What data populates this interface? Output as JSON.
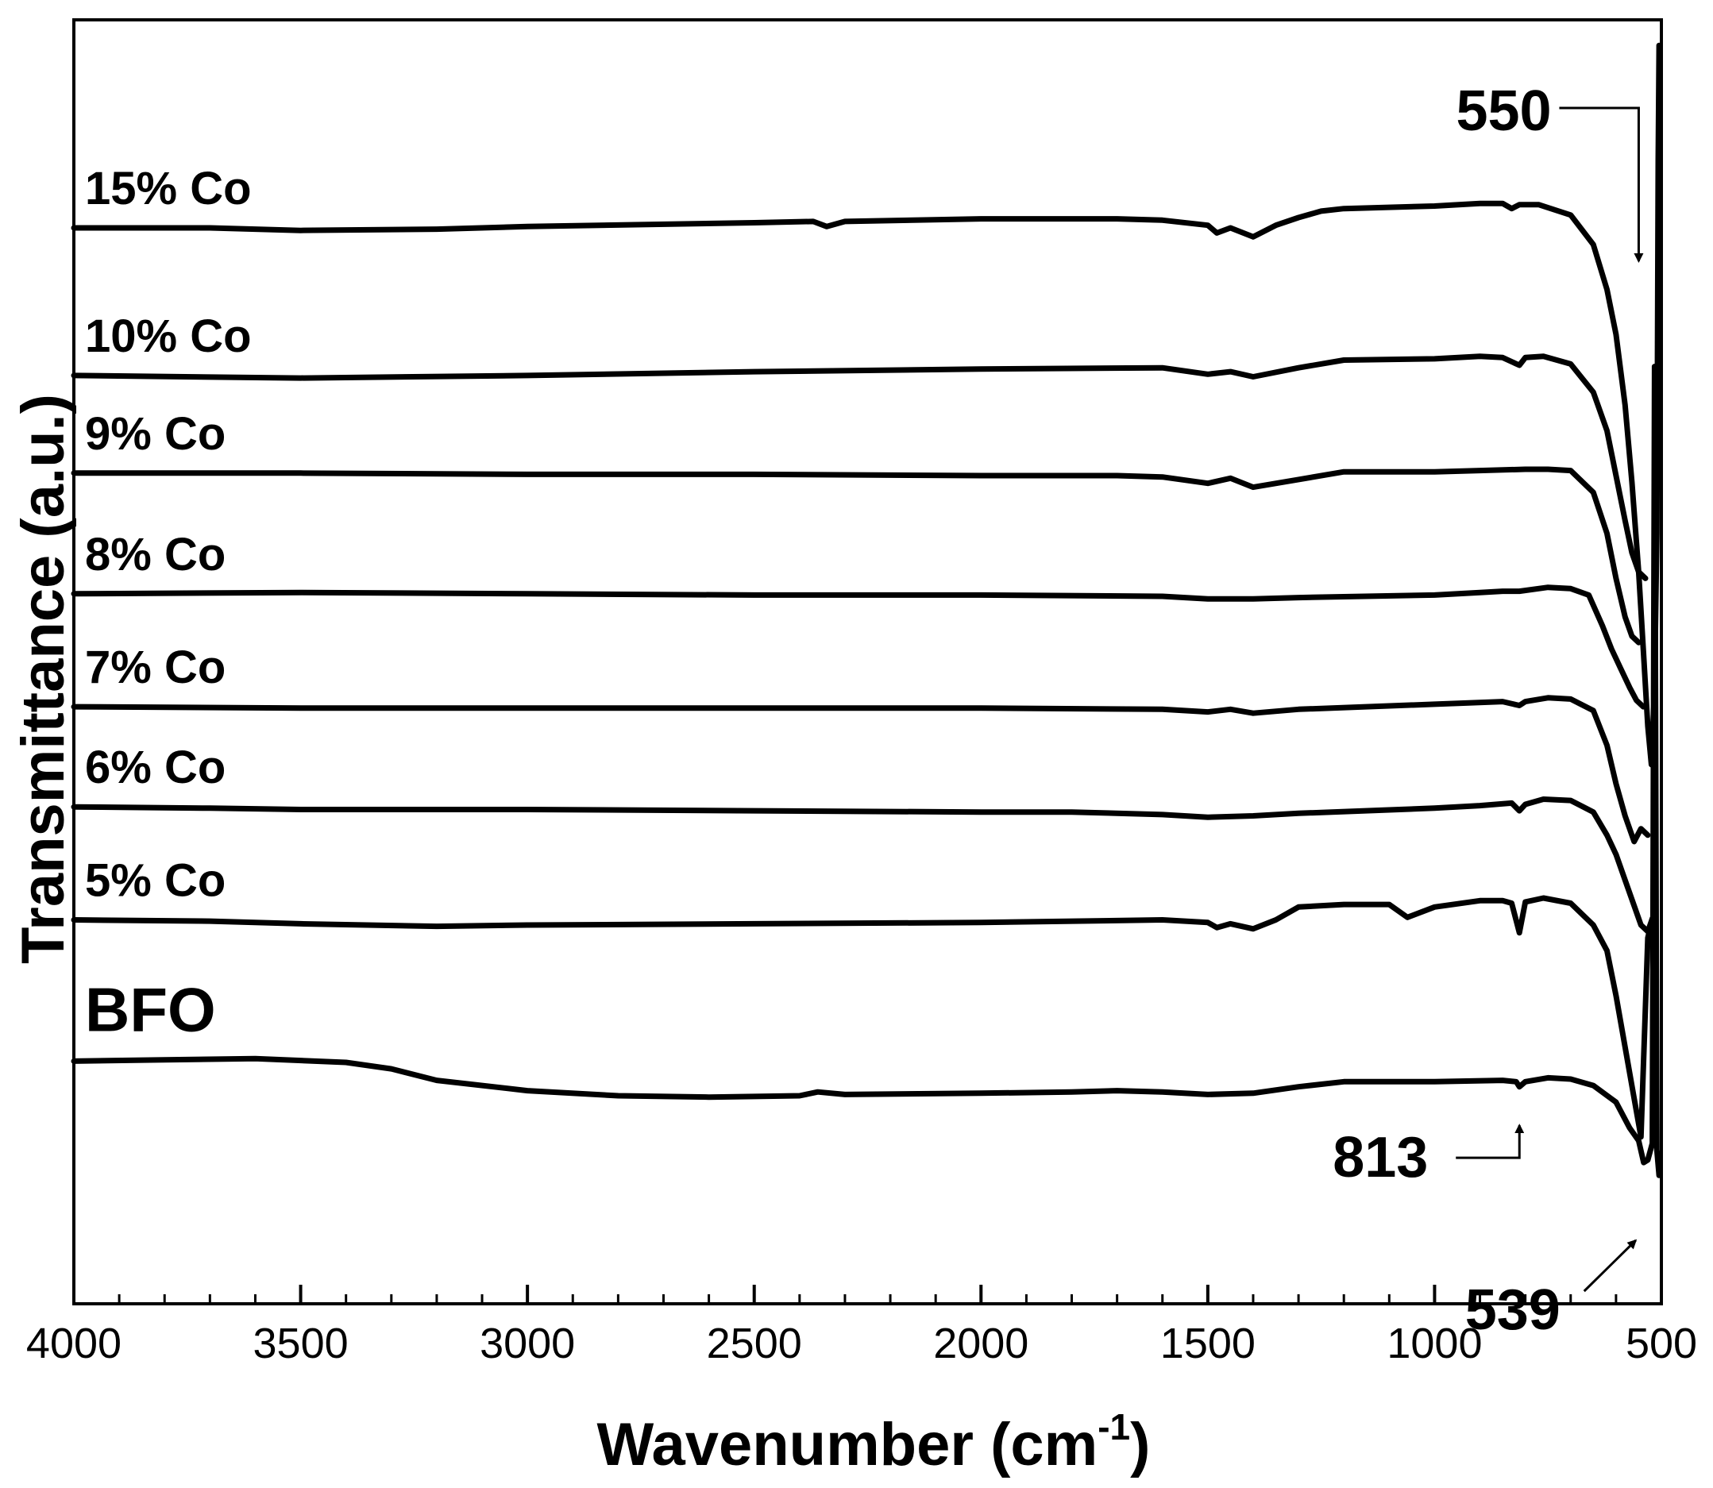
{
  "chart_data": {
    "type": "line",
    "title": "",
    "xlabel": "Wavenumber (cm",
    "xlabel_sup": "-1",
    "xlabel_close": ")",
    "ylabel": "Transmittance (a.u.)",
    "xlim": [
      4000,
      500
    ],
    "ylim": [
      0,
      100
    ],
    "x_ticks": [
      4000,
      3500,
      3000,
      2500,
      2000,
      1500,
      1000,
      500
    ],
    "x_tick_labels": [
      "4000",
      "3500",
      "3000",
      "2500",
      "2000",
      "1500",
      "1000",
      "500"
    ],
    "series": [
      {
        "name": "BFO",
        "points": [
          [
            4000,
            18.9
          ],
          [
            3800,
            19.0
          ],
          [
            3600,
            19.1
          ],
          [
            3400,
            18.8
          ],
          [
            3300,
            18.3
          ],
          [
            3200,
            17.4
          ],
          [
            3000,
            16.6
          ],
          [
            2800,
            16.2
          ],
          [
            2600,
            16.1
          ],
          [
            2400,
            16.2
          ],
          [
            2360,
            16.5
          ],
          [
            2300,
            16.3
          ],
          [
            2000,
            16.4
          ],
          [
            1800,
            16.5
          ],
          [
            1700,
            16.6
          ],
          [
            1600,
            16.5
          ],
          [
            1500,
            16.3
          ],
          [
            1400,
            16.4
          ],
          [
            1300,
            16.9
          ],
          [
            1200,
            17.3
          ],
          [
            1000,
            17.3
          ],
          [
            850,
            17.4
          ],
          [
            820,
            17.3
          ],
          [
            813,
            16.9
          ],
          [
            800,
            17.3
          ],
          [
            750,
            17.6
          ],
          [
            700,
            17.5
          ],
          [
            650,
            17.0
          ],
          [
            600,
            15.7
          ],
          [
            570,
            13.7
          ],
          [
            550,
            12.7
          ],
          [
            539,
            11.0
          ],
          [
            530,
            11.2
          ],
          [
            520,
            12.5
          ],
          [
            515,
            73
          ],
          [
            510,
            12
          ],
          [
            505,
            10
          ]
        ]
      },
      {
        "name": "5% Co",
        "points": [
          [
            4000,
            29.9
          ],
          [
            3700,
            29.8
          ],
          [
            3500,
            29.6
          ],
          [
            3200,
            29.4
          ],
          [
            3000,
            29.5
          ],
          [
            2500,
            29.6
          ],
          [
            2000,
            29.7
          ],
          [
            1600,
            29.9
          ],
          [
            1500,
            29.7
          ],
          [
            1480,
            29.3
          ],
          [
            1450,
            29.6
          ],
          [
            1400,
            29.2
          ],
          [
            1350,
            29.9
          ],
          [
            1300,
            30.9
          ],
          [
            1200,
            31.1
          ],
          [
            1100,
            31.1
          ],
          [
            1060,
            30.1
          ],
          [
            1000,
            30.9
          ],
          [
            900,
            31.4
          ],
          [
            850,
            31.4
          ],
          [
            830,
            31.2
          ],
          [
            813,
            28.9
          ],
          [
            800,
            31.3
          ],
          [
            760,
            31.6
          ],
          [
            700,
            31.2
          ],
          [
            650,
            29.5
          ],
          [
            620,
            27.5
          ],
          [
            600,
            24.0
          ],
          [
            580,
            20.0
          ],
          [
            560,
            16.0
          ],
          [
            545,
            13.0
          ],
          [
            530,
            28.5
          ],
          [
            520,
            30.0
          ]
        ]
      },
      {
        "name": "6% Co",
        "points": [
          [
            4000,
            38.7
          ],
          [
            3700,
            38.6
          ],
          [
            3500,
            38.5
          ],
          [
            3000,
            38.5
          ],
          [
            2500,
            38.4
          ],
          [
            2000,
            38.3
          ],
          [
            1800,
            38.3
          ],
          [
            1600,
            38.1
          ],
          [
            1500,
            37.9
          ],
          [
            1400,
            38.0
          ],
          [
            1300,
            38.2
          ],
          [
            1000,
            38.6
          ],
          [
            900,
            38.8
          ],
          [
            830,
            39.0
          ],
          [
            813,
            38.4
          ],
          [
            800,
            38.9
          ],
          [
            760,
            39.3
          ],
          [
            700,
            39.2
          ],
          [
            650,
            38.3
          ],
          [
            620,
            36.5
          ],
          [
            600,
            35.0
          ],
          [
            580,
            33.0
          ],
          [
            560,
            31.0
          ],
          [
            545,
            29.5
          ],
          [
            530,
            29.0
          ],
          [
            520,
            30.0
          ]
        ]
      },
      {
        "name": "7% Co",
        "points": [
          [
            4000,
            46.5
          ],
          [
            3500,
            46.4
          ],
          [
            3000,
            46.4
          ],
          [
            2500,
            46.4
          ],
          [
            2000,
            46.4
          ],
          [
            1600,
            46.3
          ],
          [
            1500,
            46.1
          ],
          [
            1450,
            46.3
          ],
          [
            1400,
            46.0
          ],
          [
            1300,
            46.3
          ],
          [
            1000,
            46.7
          ],
          [
            850,
            46.9
          ],
          [
            813,
            46.6
          ],
          [
            800,
            46.9
          ],
          [
            750,
            47.2
          ],
          [
            700,
            47.1
          ],
          [
            650,
            46.2
          ],
          [
            620,
            43.5
          ],
          [
            600,
            40.5
          ],
          [
            580,
            38.0
          ],
          [
            560,
            36.0
          ],
          [
            545,
            37.0
          ],
          [
            530,
            36.5
          ]
        ]
      },
      {
        "name": "8% Co",
        "points": [
          [
            4000,
            55.3
          ],
          [
            3500,
            55.4
          ],
          [
            3000,
            55.3
          ],
          [
            2500,
            55.2
          ],
          [
            2000,
            55.2
          ],
          [
            1600,
            55.1
          ],
          [
            1500,
            54.9
          ],
          [
            1400,
            54.9
          ],
          [
            1300,
            55.0
          ],
          [
            1000,
            55.2
          ],
          [
            900,
            55.4
          ],
          [
            850,
            55.5
          ],
          [
            813,
            55.5
          ],
          [
            750,
            55.8
          ],
          [
            700,
            55.7
          ],
          [
            660,
            55.2
          ],
          [
            630,
            52.8
          ],
          [
            610,
            51.0
          ],
          [
            590,
            49.5
          ],
          [
            570,
            48.0
          ],
          [
            555,
            47.0
          ],
          [
            540,
            46.5
          ]
        ]
      },
      {
        "name": "9% Co",
        "points": [
          [
            4000,
            64.7
          ],
          [
            3500,
            64.7
          ],
          [
            3000,
            64.6
          ],
          [
            2500,
            64.6
          ],
          [
            2000,
            64.5
          ],
          [
            1700,
            64.5
          ],
          [
            1600,
            64.4
          ],
          [
            1500,
            63.9
          ],
          [
            1450,
            64.3
          ],
          [
            1400,
            63.6
          ],
          [
            1300,
            64.2
          ],
          [
            1200,
            64.8
          ],
          [
            1000,
            64.8
          ],
          [
            900,
            64.9
          ],
          [
            800,
            65.0
          ],
          [
            750,
            65.0
          ],
          [
            700,
            64.9
          ],
          [
            650,
            63.2
          ],
          [
            620,
            60.0
          ],
          [
            600,
            56.5
          ],
          [
            580,
            53.5
          ],
          [
            565,
            52.0
          ],
          [
            550,
            51.5
          ]
        ]
      },
      {
        "name": "10% Co",
        "points": [
          [
            4000,
            72.3
          ],
          [
            3500,
            72.1
          ],
          [
            3000,
            72.3
          ],
          [
            2500,
            72.6
          ],
          [
            2000,
            72.8
          ],
          [
            1600,
            72.9
          ],
          [
            1500,
            72.4
          ],
          [
            1450,
            72.6
          ],
          [
            1400,
            72.2
          ],
          [
            1300,
            72.9
          ],
          [
            1200,
            73.5
          ],
          [
            1000,
            73.6
          ],
          [
            900,
            73.8
          ],
          [
            850,
            73.7
          ],
          [
            813,
            73.1
          ],
          [
            800,
            73.7
          ],
          [
            760,
            73.8
          ],
          [
            700,
            73.2
          ],
          [
            650,
            71.0
          ],
          [
            620,
            68.0
          ],
          [
            600,
            64.5
          ],
          [
            580,
            61.0
          ],
          [
            565,
            58.5
          ],
          [
            550,
            57.0
          ],
          [
            535,
            56.5
          ]
        ]
      },
      {
        "name": "15% Co",
        "points": [
          [
            4000,
            83.8
          ],
          [
            3700,
            83.8
          ],
          [
            3500,
            83.6
          ],
          [
            3200,
            83.7
          ],
          [
            3000,
            83.9
          ],
          [
            2500,
            84.2
          ],
          [
            2370,
            84.3
          ],
          [
            2340,
            83.9
          ],
          [
            2300,
            84.3
          ],
          [
            2000,
            84.5
          ],
          [
            1700,
            84.5
          ],
          [
            1600,
            84.4
          ],
          [
            1500,
            84.0
          ],
          [
            1480,
            83.4
          ],
          [
            1450,
            83.8
          ],
          [
            1400,
            83.1
          ],
          [
            1350,
            84.0
          ],
          [
            1300,
            84.6
          ],
          [
            1250,
            85.1
          ],
          [
            1200,
            85.3
          ],
          [
            1000,
            85.5
          ],
          [
            900,
            85.7
          ],
          [
            850,
            85.7
          ],
          [
            830,
            85.3
          ],
          [
            813,
            85.6
          ],
          [
            770,
            85.6
          ],
          [
            700,
            84.8
          ],
          [
            650,
            82.5
          ],
          [
            620,
            79.0
          ],
          [
            600,
            75.5
          ],
          [
            580,
            70.0
          ],
          [
            565,
            64.0
          ],
          [
            550,
            57.0
          ],
          [
            540,
            51.0
          ],
          [
            530,
            45.0
          ],
          [
            522,
            42.0
          ],
          [
            515,
            48.0
          ],
          [
            510,
            60.0
          ],
          [
            507,
            89.0
          ],
          [
            505,
            98.0
          ],
          [
            503,
            80.0
          ]
        ]
      }
    ],
    "annotations": [
      {
        "text": "550",
        "x": 550,
        "y": 88
      },
      {
        "text": "813",
        "x": 813,
        "y": 17
      },
      {
        "text": "539",
        "x": 539,
        "y": 11
      }
    ]
  }
}
